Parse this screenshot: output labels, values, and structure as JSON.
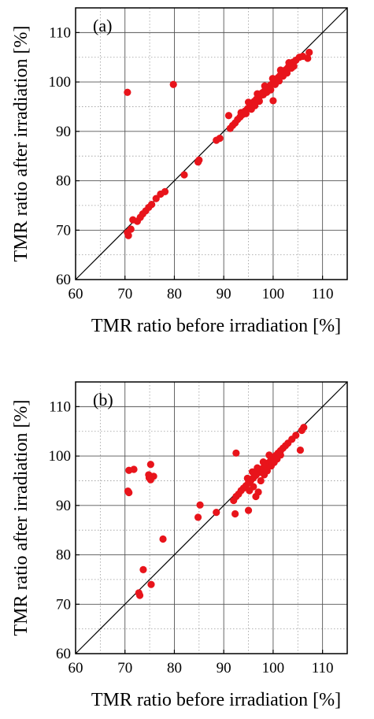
{
  "chart_data": [
    {
      "type": "scatter",
      "panel_label": "(a)",
      "xlabel": "TMR ratio before irradiation [%]",
      "ylabel": "TMR ratio after irradiation [%]",
      "xlim": [
        60,
        115
      ],
      "ylim": [
        60,
        115
      ],
      "xticks": [
        "60",
        "70",
        "80",
        "90",
        "100",
        "110"
      ],
      "yticks": [
        "60",
        "70",
        "80",
        "90",
        "100",
        "110"
      ],
      "grid": true,
      "reference_line": "y = x",
      "marker_color": "#e8141b",
      "points": [
        [
          70.5,
          97.9
        ],
        [
          79.8,
          99.5
        ],
        [
          70.5,
          69.5
        ],
        [
          70.7,
          68.9
        ],
        [
          71.2,
          70.2
        ],
        [
          71.6,
          72.1
        ],
        [
          72.5,
          71.8
        ],
        [
          73.1,
          72.6
        ],
        [
          73.6,
          73.3
        ],
        [
          74.2,
          73.9
        ],
        [
          74.8,
          74.6
        ],
        [
          75.4,
          75.2
        ],
        [
          76.3,
          76.4
        ],
        [
          77.2,
          77.3
        ],
        [
          78.1,
          77.8
        ],
        [
          82.0,
          81.2
        ],
        [
          84.8,
          83.8
        ],
        [
          85.0,
          84.2
        ],
        [
          88.5,
          88.2
        ],
        [
          89.2,
          88.6
        ],
        [
          91.0,
          93.2
        ],
        [
          91.3,
          90.6
        ],
        [
          91.8,
          91.2
        ],
        [
          92.3,
          91.7
        ],
        [
          92.8,
          92.4
        ],
        [
          93.3,
          92.9
        ],
        [
          93.8,
          93.4
        ],
        [
          94.3,
          94.1
        ],
        [
          94.8,
          94.6
        ],
        [
          95.3,
          95.1
        ],
        [
          95.8,
          95.6
        ],
        [
          96.2,
          96.1
        ],
        [
          96.6,
          96.5
        ],
        [
          97.0,
          96.9
        ],
        [
          97.4,
          97.2
        ],
        [
          97.8,
          97.8
        ],
        [
          98.2,
          98.1
        ],
        [
          98.6,
          98.5
        ],
        [
          99.0,
          98.9
        ],
        [
          99.4,
          99.3
        ],
        [
          99.8,
          99.6
        ],
        [
          100.2,
          100.1
        ],
        [
          100.6,
          100.5
        ],
        [
          101.0,
          100.9
        ],
        [
          101.4,
          101.3
        ],
        [
          101.8,
          101.7
        ],
        [
          102.2,
          102.0
        ],
        [
          102.6,
          102.5
        ],
        [
          103.0,
          102.9
        ],
        [
          103.5,
          103.4
        ],
        [
          104.0,
          104.0
        ],
        [
          104.6,
          104.4
        ],
        [
          105.3,
          105.0
        ],
        [
          106.0,
          105.2
        ],
        [
          107.0,
          104.8
        ],
        [
          107.3,
          106.0
        ],
        [
          93.5,
          93.8
        ],
        [
          94.5,
          93.6
        ],
        [
          95.6,
          94.5
        ],
        [
          96.3,
          95.2
        ],
        [
          97.2,
          96.1
        ],
        [
          98.0,
          97.4
        ],
        [
          98.7,
          97.9
        ],
        [
          99.5,
          98.4
        ],
        [
          100.4,
          99.5
        ],
        [
          100.0,
          96.2
        ],
        [
          101.2,
          100.2
        ],
        [
          102.0,
          101.2
        ],
        [
          102.8,
          101.8
        ],
        [
          103.7,
          102.8
        ],
        [
          95.0,
          95.9
        ],
        [
          96.8,
          97.6
        ],
        [
          98.3,
          99.2
        ],
        [
          99.9,
          100.7
        ],
        [
          101.5,
          102.4
        ],
        [
          103.2,
          103.9
        ],
        [
          104.2,
          103.2
        ]
      ]
    },
    {
      "type": "scatter",
      "panel_label": "(b)",
      "xlabel": "TMR ratio before irradiation [%]",
      "ylabel": "TMR ratio after irradiation [%]",
      "xlim": [
        60,
        115
      ],
      "ylim": [
        60,
        115
      ],
      "xticks": [
        "60",
        "70",
        "80",
        "90",
        "100",
        "110"
      ],
      "yticks": [
        "60",
        "70",
        "80",
        "90",
        "100",
        "110"
      ],
      "grid": true,
      "reference_line": "y = x",
      "marker_color": "#e8141b",
      "points": [
        [
          70.8,
          97.1
        ],
        [
          71.8,
          97.3
        ],
        [
          70.6,
          92.9
        ],
        [
          70.8,
          92.6
        ],
        [
          74.8,
          96.2
        ],
        [
          75.2,
          95.2
        ],
        [
          75.2,
          98.3
        ],
        [
          75.8,
          95.9
        ],
        [
          74.9,
          95.6
        ],
        [
          77.7,
          83.2
        ],
        [
          73.7,
          77.0
        ],
        [
          75.3,
          74.0
        ],
        [
          73.0,
          71.8
        ],
        [
          72.8,
          72.3
        ],
        [
          84.8,
          87.6
        ],
        [
          85.2,
          90.1
        ],
        [
          88.5,
          88.6
        ],
        [
          92.5,
          100.6
        ],
        [
          92.3,
          88.3
        ],
        [
          95.0,
          89.0
        ],
        [
          92.0,
          91.0
        ],
        [
          92.5,
          91.8
        ],
        [
          93.0,
          92.3
        ],
        [
          93.5,
          93.0
        ],
        [
          94.0,
          93.5
        ],
        [
          94.5,
          94.0
        ],
        [
          95.0,
          94.6
        ],
        [
          95.5,
          95.1
        ],
        [
          96.0,
          95.6
        ],
        [
          96.5,
          96.1
        ],
        [
          97.0,
          96.6
        ],
        [
          97.5,
          97.1
        ],
        [
          98.0,
          97.6
        ],
        [
          98.5,
          98.1
        ],
        [
          99.0,
          98.6
        ],
        [
          99.5,
          99.1
        ],
        [
          100.0,
          99.6
        ],
        [
          100.5,
          100.1
        ],
        [
          101.0,
          100.6
        ],
        [
          101.5,
          101.1
        ],
        [
          102.0,
          101.6
        ],
        [
          102.5,
          102.1
        ],
        [
          103.0,
          102.6
        ],
        [
          103.8,
          103.4
        ],
        [
          104.6,
          104.2
        ],
        [
          105.5,
          101.2
        ],
        [
          105.8,
          105.2
        ],
        [
          106.2,
          105.8
        ],
        [
          96.5,
          91.8
        ],
        [
          97.0,
          92.7
        ],
        [
          96.0,
          93.8
        ],
        [
          94.8,
          95.5
        ],
        [
          95.8,
          96.8
        ],
        [
          96.8,
          97.6
        ],
        [
          98.0,
          98.8
        ],
        [
          98.8,
          97.0
        ],
        [
          99.6,
          98.0
        ],
        [
          100.8,
          99.4
        ],
        [
          101.5,
          100.2
        ],
        [
          97.5,
          95.0
        ],
        [
          98.2,
          96.2
        ],
        [
          99.2,
          100.2
        ],
        [
          100.2,
          98.7
        ],
        [
          95.2,
          93.0
        ]
      ]
    }
  ]
}
